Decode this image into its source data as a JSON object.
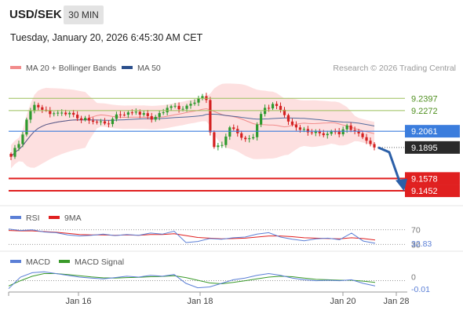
{
  "header": {
    "symbol": "USD/SEK",
    "timeframe": "30 MIN",
    "datetime": "Tuesday, January 20, 2026 6:45:30 AM CET"
  },
  "legend": {
    "ma20": "MA 20 + Bollinger Bands",
    "ma50": "MA 50",
    "credit": "Research © 2026 Trading Central"
  },
  "colors": {
    "candle_up": "#2e9a2e",
    "candle_down": "#d42121",
    "bollinger_fill": "#fde0e0",
    "ma20": "#f28b8b",
    "ma50": "#2b4f8c",
    "resistance": "#9bbf5a",
    "pivot": "#3b7ddd",
    "support": "#e02020",
    "forecast_arrow": "#2b5fa8",
    "rsi": "#5b7fd6",
    "rsi_ma": "#e02020",
    "macd": "#5b7fd6",
    "macd_signal": "#3a9a2a"
  },
  "chart_data": {
    "type": "candlestick",
    "y_range": [
      9.13,
      9.26
    ],
    "x_ticks": [
      "Jan 16",
      "Jan 18",
      "Jan 20",
      "Jan 28"
    ],
    "levels": [
      {
        "label": "9.2397",
        "value": 9.2397,
        "kind": "resistance"
      },
      {
        "label": "9.2272",
        "value": 9.2272,
        "kind": "resistance"
      },
      {
        "label": "9.2061",
        "value": 9.2061,
        "kind": "pivot"
      },
      {
        "label": "9.1895",
        "value": 9.1895,
        "kind": "last"
      },
      {
        "label": "9.1578",
        "value": 9.1578,
        "kind": "support"
      },
      {
        "label": "9.1452",
        "value": 9.1452,
        "kind": "support"
      }
    ],
    "candle_anchors": [
      {
        "t": 0,
        "close": 9.18
      },
      {
        "t": 2,
        "close": 9.193
      },
      {
        "t": 4,
        "close": 9.218
      },
      {
        "t": 6,
        "close": 9.233
      },
      {
        "t": 8,
        "close": 9.228
      },
      {
        "t": 12,
        "close": 9.225
      },
      {
        "t": 16,
        "close": 9.223
      },
      {
        "t": 20,
        "close": 9.217
      },
      {
        "t": 24,
        "close": 9.214
      },
      {
        "t": 28,
        "close": 9.223
      },
      {
        "t": 32,
        "close": 9.226
      },
      {
        "t": 36,
        "close": 9.218
      },
      {
        "t": 40,
        "close": 9.23
      },
      {
        "t": 44,
        "close": 9.229
      },
      {
        "t": 48,
        "close": 9.24
      },
      {
        "t": 50,
        "close": 9.238
      },
      {
        "t": 51,
        "close": 9.205
      },
      {
        "t": 52,
        "close": 9.19
      },
      {
        "t": 54,
        "close": 9.192
      },
      {
        "t": 56,
        "close": 9.21
      },
      {
        "t": 58,
        "close": 9.204
      },
      {
        "t": 60,
        "close": 9.198
      },
      {
        "t": 62,
        "close": 9.2
      },
      {
        "t": 63,
        "close": 9.213
      },
      {
        "t": 65,
        "close": 9.23
      },
      {
        "t": 67,
        "close": 9.234
      },
      {
        "t": 69,
        "close": 9.228
      },
      {
        "t": 71,
        "close": 9.216
      },
      {
        "t": 73,
        "close": 9.21
      },
      {
        "t": 76,
        "close": 9.205
      },
      {
        "t": 79,
        "close": 9.204
      },
      {
        "t": 82,
        "close": 9.206
      },
      {
        "t": 84,
        "close": 9.203
      },
      {
        "t": 86,
        "close": 9.212
      },
      {
        "t": 88,
        "close": 9.206
      },
      {
        "t": 90,
        "close": 9.2
      },
      {
        "t": 92,
        "close": 9.193
      },
      {
        "t": 93,
        "close": 9.1895
      }
    ],
    "forecast": {
      "from": 9.1895,
      "to": 9.148
    },
    "rsi": {
      "label": "RSI",
      "ma_label": "9MA",
      "levels": [
        "70",
        "30"
      ],
      "value_label": "32.83",
      "values": [
        72,
        68,
        70,
        64,
        62,
        56,
        53,
        55,
        58,
        54,
        57,
        55,
        61,
        58,
        66,
        35,
        38,
        46,
        44,
        48,
        50,
        58,
        62,
        50,
        44,
        40,
        45,
        47,
        43,
        61,
        39,
        33
      ],
      "ma_values": [
        68,
        67,
        67,
        65,
        63,
        60,
        57,
        56,
        56,
        55,
        56,
        55,
        57,
        57,
        59,
        54,
        49,
        47,
        45,
        46,
        47,
        50,
        53,
        53,
        51,
        48,
        47,
        46,
        45,
        48,
        46,
        42
      ]
    },
    "macd": {
      "label": "MACD",
      "signal_label": "MACD Signal",
      "zero_label": "0",
      "value_label": "-0.01",
      "values": [
        -0.9,
        0.4,
        0.9,
        1.0,
        0.8,
        0.6,
        0.4,
        0.3,
        0.2,
        0.35,
        0.5,
        0.4,
        0.6,
        0.5,
        0.7,
        -0.3,
        -0.8,
        -0.7,
        -0.3,
        0.1,
        0.3,
        0.6,
        0.8,
        0.6,
        0.3,
        0.1,
        0.0,
        0.05,
        0.0,
        0.1,
        -0.3,
        -0.6
      ],
      "signal_values": [
        -0.6,
        0.0,
        0.5,
        0.8,
        0.8,
        0.7,
        0.55,
        0.42,
        0.32,
        0.3,
        0.35,
        0.38,
        0.45,
        0.48,
        0.55,
        0.35,
        0.05,
        -0.25,
        -0.35,
        -0.2,
        0.0,
        0.2,
        0.4,
        0.5,
        0.45,
        0.3,
        0.15,
        0.1,
        0.05,
        0.05,
        -0.05,
        -0.2
      ]
    }
  }
}
